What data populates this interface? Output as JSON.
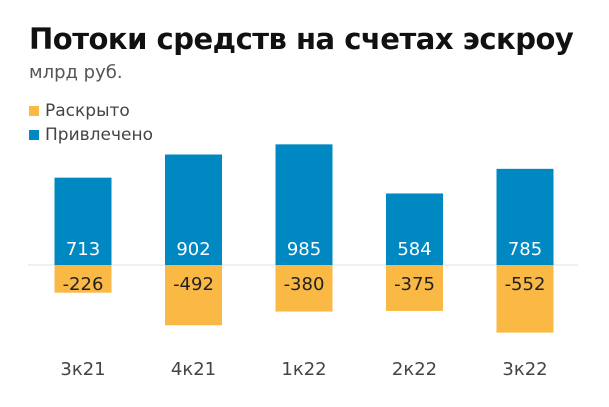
{
  "title": "Потоки средств на счетах эскроу",
  "subtitle": "млрд руб.",
  "legend": [
    {
      "label": "Раскрыто",
      "color": "#F9B944"
    },
    {
      "label": "Привлечено",
      "color": "#0088C2"
    }
  ],
  "chart_data": {
    "type": "bar",
    "title": "Потоки средств на счетах эскроу",
    "subtitle": "млрд руб.",
    "categories": [
      "3к21",
      "4к21",
      "1к22",
      "2к22",
      "3к22"
    ],
    "series": [
      {
        "name": "Привлечено",
        "color": "#0088C2",
        "values": [
          713,
          902,
          985,
          584,
          785
        ]
      },
      {
        "name": "Раскрыто",
        "color": "#F9B944",
        "values": [
          -226,
          -492,
          -380,
          -375,
          -552
        ]
      }
    ],
    "stacked": true,
    "ylim": [
      -552,
      985
    ],
    "grid": false,
    "legend_position": "top-left"
  }
}
